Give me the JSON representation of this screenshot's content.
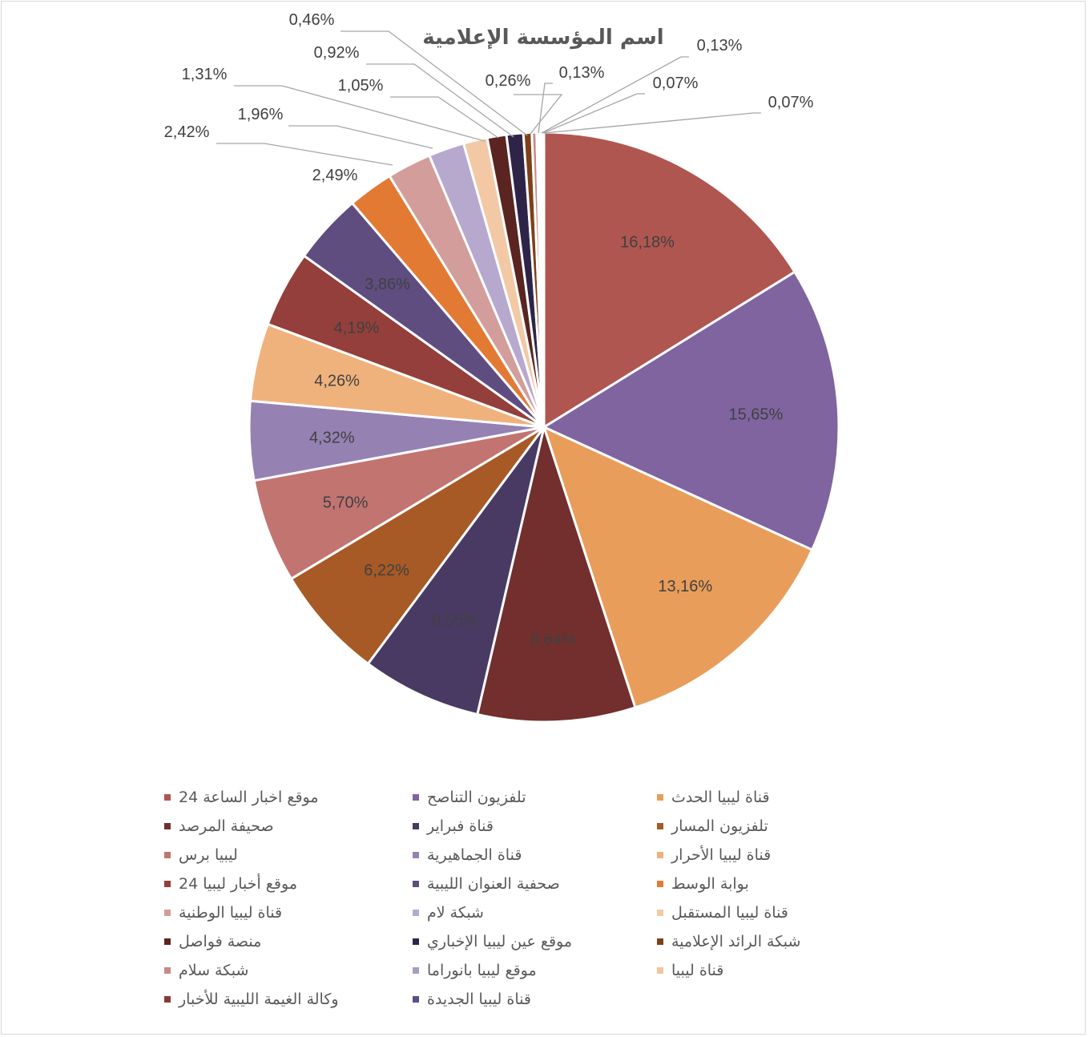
{
  "chart_data": {
    "type": "pie",
    "title": "اسم المؤسسة الإعلامية",
    "legend_position": "bottom",
    "slices": [
      {
        "name": "موقع اخبار الساعة 24",
        "value": 16.18,
        "label": "16,18%",
        "color": "#b05650"
      },
      {
        "name": "تلفزيون التناصح",
        "value": 15.65,
        "label": "15,65%",
        "color": "#7f64a0"
      },
      {
        "name": "قناة ليبيا الحدث",
        "value": 13.16,
        "label": "13,16%",
        "color": "#e99d5a"
      },
      {
        "name": "صحيفة المرصد",
        "value": 8.64,
        "label": "8,64%",
        "color": "#722f2e"
      },
      {
        "name": "قناة فبراير",
        "value": 6.55,
        "label": "6,55%",
        "color": "#493a63"
      },
      {
        "name": "تلفزيون المسار",
        "value": 6.22,
        "label": "6,22%",
        "color": "#a75a25"
      },
      {
        "name": "ليبيا برس",
        "value": 5.7,
        "label": "5,70%",
        "color": "#c27471"
      },
      {
        "name": "قناة الجماهيرية",
        "value": 4.32,
        "label": "4,32%",
        "color": "#9582b3"
      },
      {
        "name": "قناة ليبيا الأحرار",
        "value": 4.26,
        "label": "4,26%",
        "color": "#efb27d"
      },
      {
        "name": "موقع أخبار ليبيا 24",
        "value": 4.19,
        "label": "4,19%",
        "color": "#943f3b"
      },
      {
        "name": "صحفية العنوان الليبية",
        "value": 3.86,
        "label": "3,86%",
        "color": "#5f4d80"
      },
      {
        "name": "بوابة الوسط",
        "value": 2.49,
        "label": "2,49%",
        "color": "#e27a33"
      },
      {
        "name": "قناة ليبيا الوطنية",
        "value": 2.42,
        "label": "2,42%",
        "color": "#d29d9a"
      },
      {
        "name": "شبكة لام",
        "value": 1.96,
        "label": "1,96%",
        "color": "#b7a9cd"
      },
      {
        "name": "قناة ليبيا المستقبل",
        "value": 1.31,
        "label": "1,31%",
        "color": "#f2c9a4"
      },
      {
        "name": "منصة فواصل",
        "value": 1.05,
        "label": "1,05%",
        "color": "#5a2420"
      },
      {
        "name": "موقع عين ليبيا الإخباري",
        "value": 0.92,
        "label": "0,92%",
        "color": "#2e2448"
      },
      {
        "name": "شبكة الرائد الإعلامية",
        "value": 0.46,
        "label": "0,46%",
        "color": "#7c4119"
      },
      {
        "name": "شبكة سلام",
        "value": 0.26,
        "label": "0,26%",
        "color": "#c98a86"
      },
      {
        "name": "موقع ليبيا بانوراما",
        "value": 0.13,
        "label": "0,13%",
        "color": "#a99bc4"
      },
      {
        "name": "قناة ليبيا",
        "value": 0.13,
        "label": "0,13%",
        "color": "#f4c49a"
      },
      {
        "name": "وكالة الغيمة الليبية للأخبار",
        "value": 0.07,
        "label": "0,07%",
        "color": "#8a3a36"
      },
      {
        "name": "قناة ليبيا الجديدة",
        "value": 0.07,
        "label": "0,07%",
        "color": "#5e4d84"
      }
    ]
  }
}
